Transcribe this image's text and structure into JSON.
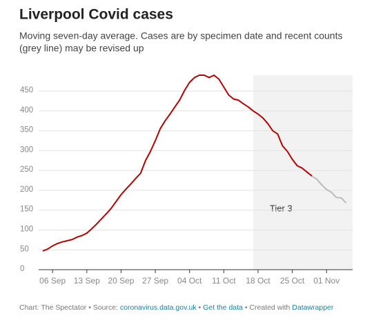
{
  "chart_data": {
    "type": "line",
    "title": "Liverpool Covid cases",
    "subtitle_lines": [
      "Moving seven-day average. Cases are by specimen date and recent counts",
      "(grey line) may be revised up"
    ],
    "categories": [
      "04 Sep",
      "05 Sep",
      "06 Sep",
      "07 Sep",
      "08 Sep",
      "09 Sep",
      "10 Sep",
      "11 Sep",
      "12 Sep",
      "13 Sep",
      "14 Sep",
      "15 Sep",
      "16 Sep",
      "17 Sep",
      "18 Sep",
      "19 Sep",
      "20 Sep",
      "21 Sep",
      "22 Sep",
      "23 Sep",
      "24 Sep",
      "25 Sep",
      "26 Sep",
      "27 Sep",
      "28 Sep",
      "29 Sep",
      "30 Sep",
      "01 Oct",
      "02 Oct",
      "03 Oct",
      "04 Oct",
      "05 Oct",
      "06 Oct",
      "07 Oct",
      "08 Oct",
      "09 Oct",
      "10 Oct",
      "11 Oct",
      "12 Oct",
      "13 Oct",
      "14 Oct",
      "15 Oct",
      "16 Oct",
      "17 Oct",
      "18 Oct",
      "19 Oct",
      "20 Oct",
      "21 Oct",
      "22 Oct",
      "23 Oct",
      "24 Oct",
      "25 Oct",
      "26 Oct",
      "27 Oct",
      "28 Oct",
      "29 Oct",
      "30 Oct",
      "31 Oct",
      "01 Nov",
      "02 Nov",
      "03 Nov",
      "04 Nov",
      "05 Nov"
    ],
    "xtick_indices": [
      2,
      9,
      16,
      23,
      30,
      37,
      44,
      51,
      58
    ],
    "series": [
      {
        "color": "#b30000",
        "values": [
          47,
          52,
          60,
          66,
          70,
          73,
          76,
          82,
          86,
          92,
          103,
          115,
          128,
          141,
          155,
          172,
          189,
          203,
          216,
          230,
          243,
          275,
          298,
          325,
          355,
          375,
          392,
          410,
          428,
          452,
          472,
          484,
          490,
          490,
          484,
          490,
          480,
          460,
          440,
          430,
          427,
          418,
          410,
          400,
          392,
          382,
          368,
          350,
          342,
          312,
          298,
          278,
          262,
          256,
          246,
          236,
          null,
          null,
          null,
          null,
          null,
          null,
          null
        ]
      },
      {
        "color": "#bbbbbb",
        "values": [
          null,
          null,
          null,
          null,
          null,
          null,
          null,
          null,
          null,
          null,
          null,
          null,
          null,
          null,
          null,
          null,
          null,
          null,
          null,
          null,
          null,
          null,
          null,
          null,
          null,
          null,
          null,
          null,
          null,
          null,
          null,
          null,
          null,
          null,
          null,
          null,
          null,
          null,
          null,
          null,
          null,
          null,
          null,
          null,
          null,
          null,
          null,
          null,
          null,
          null,
          null,
          null,
          null,
          null,
          null,
          236,
          228,
          214,
          202,
          195,
          182,
          181,
          168
        ]
      }
    ],
    "ylim": [
      0,
      490
    ],
    "yticks": [
      0,
      50,
      100,
      150,
      200,
      250,
      300,
      350,
      400,
      450
    ],
    "grid": true,
    "shade_from": "17 Oct",
    "shade_color": "#f2f2f2",
    "annotation": "Tier 3",
    "footer": [
      "Chart: The Spectator • Source: ",
      "coronavirus.data.gov.uk",
      " • ",
      "Get the data",
      " • Created with ",
      "Datawrapper"
    ]
  }
}
